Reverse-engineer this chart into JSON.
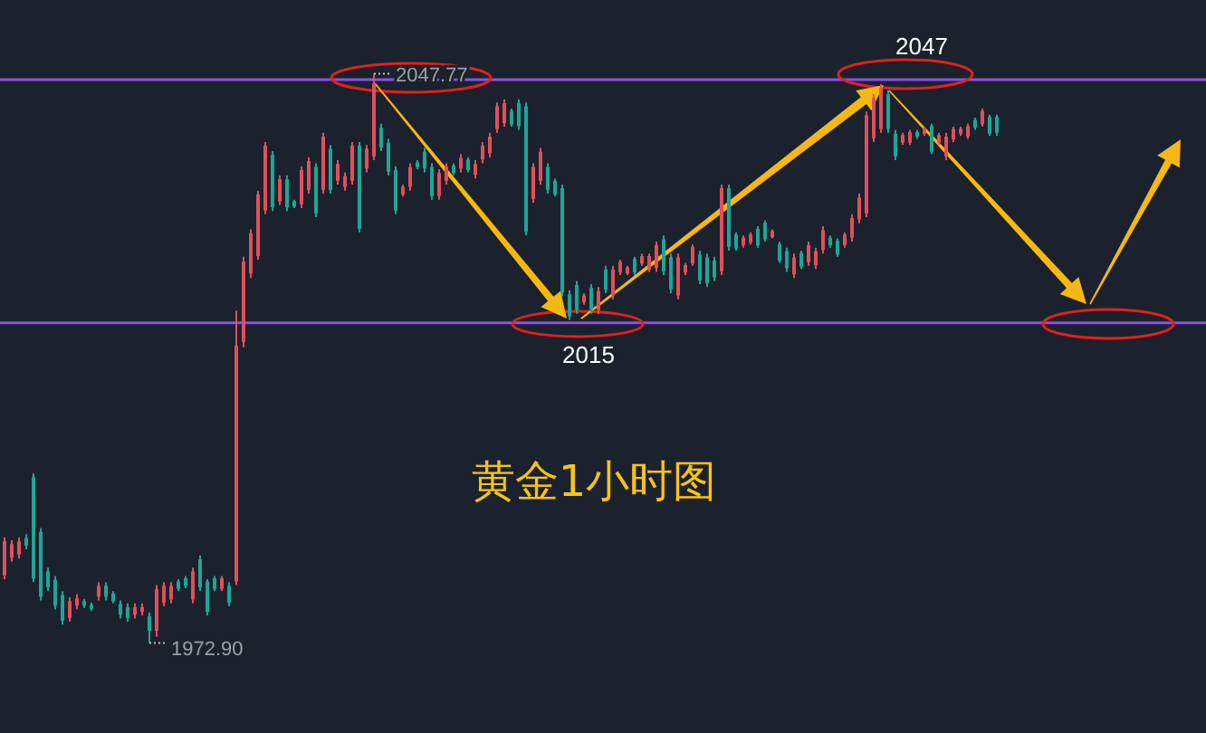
{
  "chart_data": {
    "type": "candlestick",
    "title": "黄金1小时图",
    "categories": [
      null,
      null,
      null,
      null,
      null,
      null,
      null,
      null,
      null,
      null,
      null,
      null,
      null,
      null,
      null,
      null,
      null,
      null,
      null,
      null,
      null,
      null,
      null,
      null,
      null,
      null,
      null,
      null,
      null,
      null,
      null,
      null,
      null,
      null,
      null,
      null,
      null,
      null,
      null,
      null,
      null,
      null,
      null,
      null,
      null,
      null,
      null,
      null,
      null,
      null,
      null,
      null,
      null,
      null,
      null,
      null,
      null,
      null,
      null,
      null,
      null,
      null,
      null,
      null,
      null,
      null,
      null,
      null,
      null,
      null,
      null,
      null,
      null,
      null,
      null,
      null,
      null,
      null,
      null,
      null,
      null,
      null,
      null,
      null,
      null,
      null,
      null,
      null,
      null,
      null,
      null,
      null,
      null,
      null,
      null,
      null,
      null,
      null,
      null,
      null,
      null,
      null,
      null,
      null,
      null,
      null,
      null,
      null,
      null,
      null,
      null,
      null,
      null,
      null,
      null,
      null,
      null,
      null,
      null,
      null,
      null,
      null,
      null,
      null,
      null,
      null,
      null,
      null,
      null,
      null,
      null,
      null,
      null,
      null,
      null,
      null,
      null,
      null
    ],
    "ohlc": [
      [
        1981.8,
        1986.8,
        1981.3,
        1986.3
      ],
      [
        1984.1,
        1986.4,
        1983.6,
        1985.9
      ],
      [
        1984.5,
        1986.8,
        1984.0,
        1986.3
      ],
      [
        1986.7,
        1987.2,
        1985.2,
        1985.7
      ],
      [
        1994.7,
        1995.2,
        1980.9,
        1981.4
      ],
      [
        1987.5,
        1988.0,
        1978.5,
        1979.0
      ],
      [
        1982.3,
        1982.8,
        1979.7,
        1980.2
      ],
      [
        1981.2,
        1981.7,
        1977.3,
        1977.8
      ],
      [
        1979.2,
        1979.7,
        1975.3,
        1975.8
      ],
      [
        1976.2,
        1978.9,
        1975.7,
        1978.4
      ],
      [
        1977.8,
        1979.3,
        1977.3,
        1978.8
      ],
      [
        1978.4,
        1978.7,
        1977.5,
        1977.8
      ],
      [
        1977.9,
        1978.2,
        1977.1,
        1977.4
      ],
      [
        1979.0,
        1980.9,
        1978.5,
        1980.4
      ],
      [
        1980.4,
        1980.9,
        1978.5,
        1979.0
      ],
      [
        1979.4,
        1979.7,
        1978.1,
        1978.4
      ],
      [
        1978.0,
        1978.5,
        1976.1,
        1976.6
      ],
      [
        1977.6,
        1978.1,
        1975.7,
        1976.2
      ],
      [
        1976.6,
        1978.1,
        1976.1,
        1977.6
      ],
      [
        1977.0,
        1978.1,
        1976.5,
        1977.6
      ],
      [
        1976.4,
        1976.9,
        1972.9,
        1974.5
      ],
      [
        1974.5,
        1980.5,
        1973.7,
        1980.0
      ],
      [
        1978.2,
        1980.9,
        1977.7,
        1980.4
      ],
      [
        1978.6,
        1980.9,
        1978.1,
        1980.4
      ],
      [
        1981.0,
        1981.3,
        1979.7,
        1980.0
      ],
      [
        1981.4,
        1981.7,
        1980.1,
        1980.4
      ],
      [
        1978.6,
        1982.8,
        1978.1,
        1982.3
      ],
      [
        1983.9,
        1984.4,
        1979.7,
        1980.2
      ],
      [
        1981.0,
        1981.3,
        1976.5,
        1977.0
      ],
      [
        1981.4,
        1981.7,
        1979.7,
        1980.0
      ],
      [
        1980.0,
        1981.7,
        1979.7,
        1981.4
      ],
      [
        1980.4,
        1980.9,
        1977.7,
        1978.2
      ],
      [
        1981.0,
        2016.6,
        1980.5,
        2012.0
      ],
      [
        2012.5,
        2023.7,
        2011.8,
        2023.0
      ],
      [
        2021.5,
        2027.3,
        2020.9,
        2026.8
      ],
      [
        2023.8,
        2032.4,
        2023.3,
        2031.9
      ],
      [
        2029.8,
        2038.8,
        2029.3,
        2038.3
      ],
      [
        2037.1,
        2037.6,
        2029.7,
        2030.2
      ],
      [
        2031.0,
        2034.4,
        2030.5,
        2033.9
      ],
      [
        2033.9,
        2034.4,
        2029.7,
        2030.2
      ],
      [
        2031.0,
        2031.2,
        2030.1,
        2030.3
      ],
      [
        2030.6,
        2035.6,
        2030.1,
        2035.1
      ],
      [
        2032.5,
        2036.8,
        2032.0,
        2036.3
      ],
      [
        2035.5,
        2036.0,
        2028.9,
        2029.4
      ],
      [
        2032.5,
        2040.0,
        2032.0,
        2039.5
      ],
      [
        2037.9,
        2038.4,
        2032.0,
        2032.5
      ],
      [
        2033.7,
        2036.4,
        2033.2,
        2035.9
      ],
      [
        2032.9,
        2034.8,
        2032.4,
        2034.3
      ],
      [
        2033.7,
        2038.8,
        2033.2,
        2038.3
      ],
      [
        2038.3,
        2038.8,
        2026.9,
        2027.4
      ],
      [
        2035.3,
        2038.4,
        2034.8,
        2037.9
      ],
      [
        2036.9,
        2047.77,
        2036.4,
        2046.5
      ],
      [
        2040.7,
        2041.2,
        2037.6,
        2038.1
      ],
      [
        2038.7,
        2039.2,
        2034.4,
        2034.9
      ],
      [
        2035.1,
        2035.6,
        2029.3,
        2029.8
      ],
      [
        2031.9,
        2033.2,
        2031.6,
        2032.9
      ],
      [
        2032.9,
        2036.0,
        2032.4,
        2035.5
      ],
      [
        2036.1,
        2036.4,
        2035.2,
        2035.5
      ],
      [
        2037.5,
        2038.0,
        2034.8,
        2035.3
      ],
      [
        2035.5,
        2036.0,
        2031.2,
        2031.7
      ],
      [
        2031.7,
        2035.2,
        2031.2,
        2034.7
      ],
      [
        2033.7,
        2036.0,
        2033.2,
        2035.5
      ],
      [
        2035.7,
        2036.0,
        2034.4,
        2034.7
      ],
      [
        2035.3,
        2037.2,
        2034.8,
        2036.7
      ],
      [
        2036.5,
        2036.8,
        2034.8,
        2035.1
      ],
      [
        2034.5,
        2036.4,
        2034.0,
        2035.9
      ],
      [
        2036.5,
        2038.8,
        2036.0,
        2038.3
      ],
      [
        2037.3,
        2040.0,
        2036.8,
        2039.5
      ],
      [
        2040.5,
        2044.0,
        2040.0,
        2043.5
      ],
      [
        2041.3,
        2044.4,
        2040.8,
        2043.9
      ],
      [
        2042.9,
        2043.2,
        2040.8,
        2041.1
      ],
      [
        2043.9,
        2044.4,
        2040.4,
        2040.9
      ],
      [
        2043.5,
        2044.0,
        2026.5,
        2027.0
      ],
      [
        2031.3,
        2036.0,
        2030.8,
        2035.5
      ],
      [
        2033.7,
        2038.0,
        2033.2,
        2037.5
      ],
      [
        2035.5,
        2036.0,
        2032.0,
        2032.5
      ],
      [
        2033.7,
        2034.0,
        2031.6,
        2031.9
      ],
      [
        2032.7,
        2033.2,
        2018.5,
        2019.0
      ],
      [
        2018.8,
        2019.3,
        2015.4,
        2015.9
      ],
      [
        2020.0,
        2020.5,
        2016.2,
        2016.7
      ],
      [
        2017.7,
        2018.9,
        2017.4,
        2018.6
      ],
      [
        2019.6,
        2020.1,
        2016.2,
        2016.7
      ],
      [
        2016.7,
        2019.7,
        2016.2,
        2019.2
      ],
      [
        2022.0,
        2022.5,
        2018.9,
        2019.4
      ],
      [
        2018.6,
        2022.5,
        2018.1,
        2022.0
      ],
      [
        2021.6,
        2023.3,
        2021.3,
        2023.0
      ],
      [
        2021.5,
        2022.5,
        2021.3,
        2022.3
      ],
      [
        2023.4,
        2023.7,
        2021.3,
        2021.6
      ],
      [
        2022.8,
        2024.1,
        2022.5,
        2023.8
      ],
      [
        2022.0,
        2024.1,
        2021.7,
        2023.8
      ],
      [
        2022.2,
        2025.7,
        2021.7,
        2025.2
      ],
      [
        2026.0,
        2026.5,
        2021.3,
        2021.8
      ],
      [
        2023.6,
        2024.1,
        2018.9,
        2019.4
      ],
      [
        2018.6,
        2024.1,
        2018.1,
        2023.6
      ],
      [
        2021.6,
        2022.9,
        2021.3,
        2022.6
      ],
      [
        2022.8,
        2025.3,
        2022.5,
        2025.0
      ],
      [
        2024.0,
        2024.5,
        2020.1,
        2020.6
      ],
      [
        2023.6,
        2024.1,
        2019.7,
        2020.2
      ],
      [
        2023.2,
        2023.7,
        2020.5,
        2021.0
      ],
      [
        2021.8,
        2033.2,
        2021.3,
        2032.7
      ],
      [
        2032.7,
        2033.2,
        2024.5,
        2025.0
      ],
      [
        2026.6,
        2026.9,
        2024.5,
        2024.8
      ],
      [
        2025.2,
        2026.5,
        2024.9,
        2026.2
      ],
      [
        2025.6,
        2026.9,
        2025.3,
        2026.6
      ],
      [
        2027.4,
        2027.7,
        2024.9,
        2025.2
      ],
      [
        2028.2,
        2028.5,
        2025.7,
        2026.0
      ],
      [
        2026.3,
        2027.3,
        2026.1,
        2027.1
      ],
      [
        2025.4,
        2025.7,
        2022.9,
        2023.2
      ],
      [
        2024.4,
        2024.9,
        2021.7,
        2022.2
      ],
      [
        2021.4,
        2024.1,
        2020.9,
        2023.6
      ],
      [
        2024.2,
        2024.5,
        2022.1,
        2022.4
      ],
      [
        2023.0,
        2025.7,
        2022.5,
        2025.2
      ],
      [
        2022.6,
        2024.9,
        2022.1,
        2024.4
      ],
      [
        2024.6,
        2027.7,
        2024.1,
        2027.2
      ],
      [
        2026.2,
        2026.5,
        2024.9,
        2025.2
      ],
      [
        2025.8,
        2026.1,
        2023.7,
        2024.0
      ],
      [
        2025.2,
        2026.9,
        2024.9,
        2026.6
      ],
      [
        2026.2,
        2029.3,
        2025.7,
        2028.8
      ],
      [
        2028.6,
        2032.0,
        2028.1,
        2031.5
      ],
      [
        2029.4,
        2042.8,
        2028.9,
        2042.3
      ],
      [
        2039.3,
        2045.1,
        2038.8,
        2044.6
      ],
      [
        2040.5,
        2046.4,
        2040.0,
        2045.9
      ],
      [
        2045.1,
        2045.6,
        2040.0,
        2040.5
      ],
      [
        2039.9,
        2040.4,
        2036.4,
        2036.9
      ],
      [
        2038.7,
        2040.0,
        2038.4,
        2039.7
      ],
      [
        2038.7,
        2040.4,
        2038.4,
        2040.1
      ],
      [
        2040.1,
        2040.4,
        2039.2,
        2039.5
      ],
      [
        2039.9,
        2040.8,
        2039.6,
        2040.5
      ],
      [
        2040.9,
        2041.2,
        2037.2,
        2037.5
      ],
      [
        2038.7,
        2040.0,
        2038.4,
        2039.7
      ],
      [
        2036.9,
        2040.0,
        2036.4,
        2039.5
      ],
      [
        2039.1,
        2040.8,
        2038.8,
        2040.5
      ],
      [
        2039.9,
        2040.8,
        2039.6,
        2040.5
      ],
      [
        2039.5,
        2041.2,
        2039.2,
        2040.9
      ],
      [
        2041.7,
        2042.0,
        2040.4,
        2040.7
      ],
      [
        2041.1,
        2043.2,
        2040.8,
        2042.9
      ],
      [
        2042.1,
        2042.4,
        2039.6,
        2039.9
      ],
      [
        2042.1,
        2042.4,
        2039.6,
        2040.0
      ]
    ],
    "colors": [
      "#e0505a",
      "#e0505a",
      "#e0505a",
      "#1fa596",
      "#1fa596",
      "#1fa596",
      "#1fa596",
      "#1fa596",
      "#1fa596",
      "#e0505a",
      "#e0505a",
      "#1fa596",
      "#1fa596",
      "#e0505a",
      "#1fa596",
      "#1fa596",
      "#1fa596",
      "#1fa596",
      "#e0505a",
      "#e0505a",
      "#1fa596",
      "#e0505a",
      "#e0505a",
      "#e0505a",
      "#1fa596",
      "#1fa596",
      "#e0505a",
      "#1fa596",
      "#1fa596",
      "#1fa596",
      "#e0505a",
      "#1fa596",
      "#e0505a",
      "#e0505a",
      "#e0505a",
      "#e0505a",
      "#e0505a",
      "#1fa596",
      "#e0505a",
      "#1fa596",
      "#1fa596",
      "#e0505a",
      "#e0505a",
      "#1fa596",
      "#e0505a",
      "#1fa596",
      "#e0505a",
      "#e0505a",
      "#e0505a",
      "#1fa596",
      "#e0505a",
      "#e0505a",
      "#1fa596",
      "#1fa596",
      "#1fa596",
      "#e0505a",
      "#e0505a",
      "#1fa596",
      "#1fa596",
      "#1fa596",
      "#e0505a",
      "#e0505a",
      "#1fa596",
      "#e0505a",
      "#1fa596",
      "#e0505a",
      "#e0505a",
      "#e0505a",
      "#e0505a",
      "#e0505a",
      "#1fa596",
      "#1fa596",
      "#1fa596",
      "#e0505a",
      "#e0505a",
      "#1fa596",
      "#1fa596",
      "#1fa596",
      "#1fa596",
      "#1fa596",
      "#e0505a",
      "#1fa596",
      "#e0505a",
      "#1fa596",
      "#e0505a",
      "#e0505a",
      "#e0505a",
      "#1fa596",
      "#e0505a",
      "#e0505a",
      "#e0505a",
      "#1fa596",
      "#1fa596",
      "#e0505a",
      "#e0505a",
      "#e0505a",
      "#1fa596",
      "#1fa596",
      "#1fa596",
      "#e0505a",
      "#1fa596",
      "#1fa596",
      "#e0505a",
      "#e0505a",
      "#1fa596",
      "#1fa596",
      "#e0505a",
      "#1fa596",
      "#1fa596",
      "#e0505a",
      "#1fa596",
      "#e0505a",
      "#e0505a",
      "#e0505a",
      "#1fa596",
      "#1fa596",
      "#e0505a",
      "#e0505a",
      "#e0505a",
      "#e0505a",
      "#e0505a",
      "#e0505a",
      "#1fa596",
      "#1fa596",
      "#e0505a",
      "#e0505a",
      "#1fa596",
      "#e0505a",
      "#1fa596",
      "#e0505a",
      "#e0505a",
      "#e0505a",
      "#e0505a",
      "#e0505a",
      "#1fa596",
      "#e0505a",
      "#1fa596",
      "#1fa596"
    ],
    "ref_lines": [
      {
        "axis": "y",
        "value": 2047,
        "label": "2047",
        "color": "#8d4fe6"
      },
      {
        "axis": "y",
        "value": 2015,
        "label": "2015",
        "color": "#8d4fe6"
      }
    ],
    "annotations": [
      {
        "text": "2047.77",
        "y": 2047.77
      },
      "1972.90"
    ]
  }
}
